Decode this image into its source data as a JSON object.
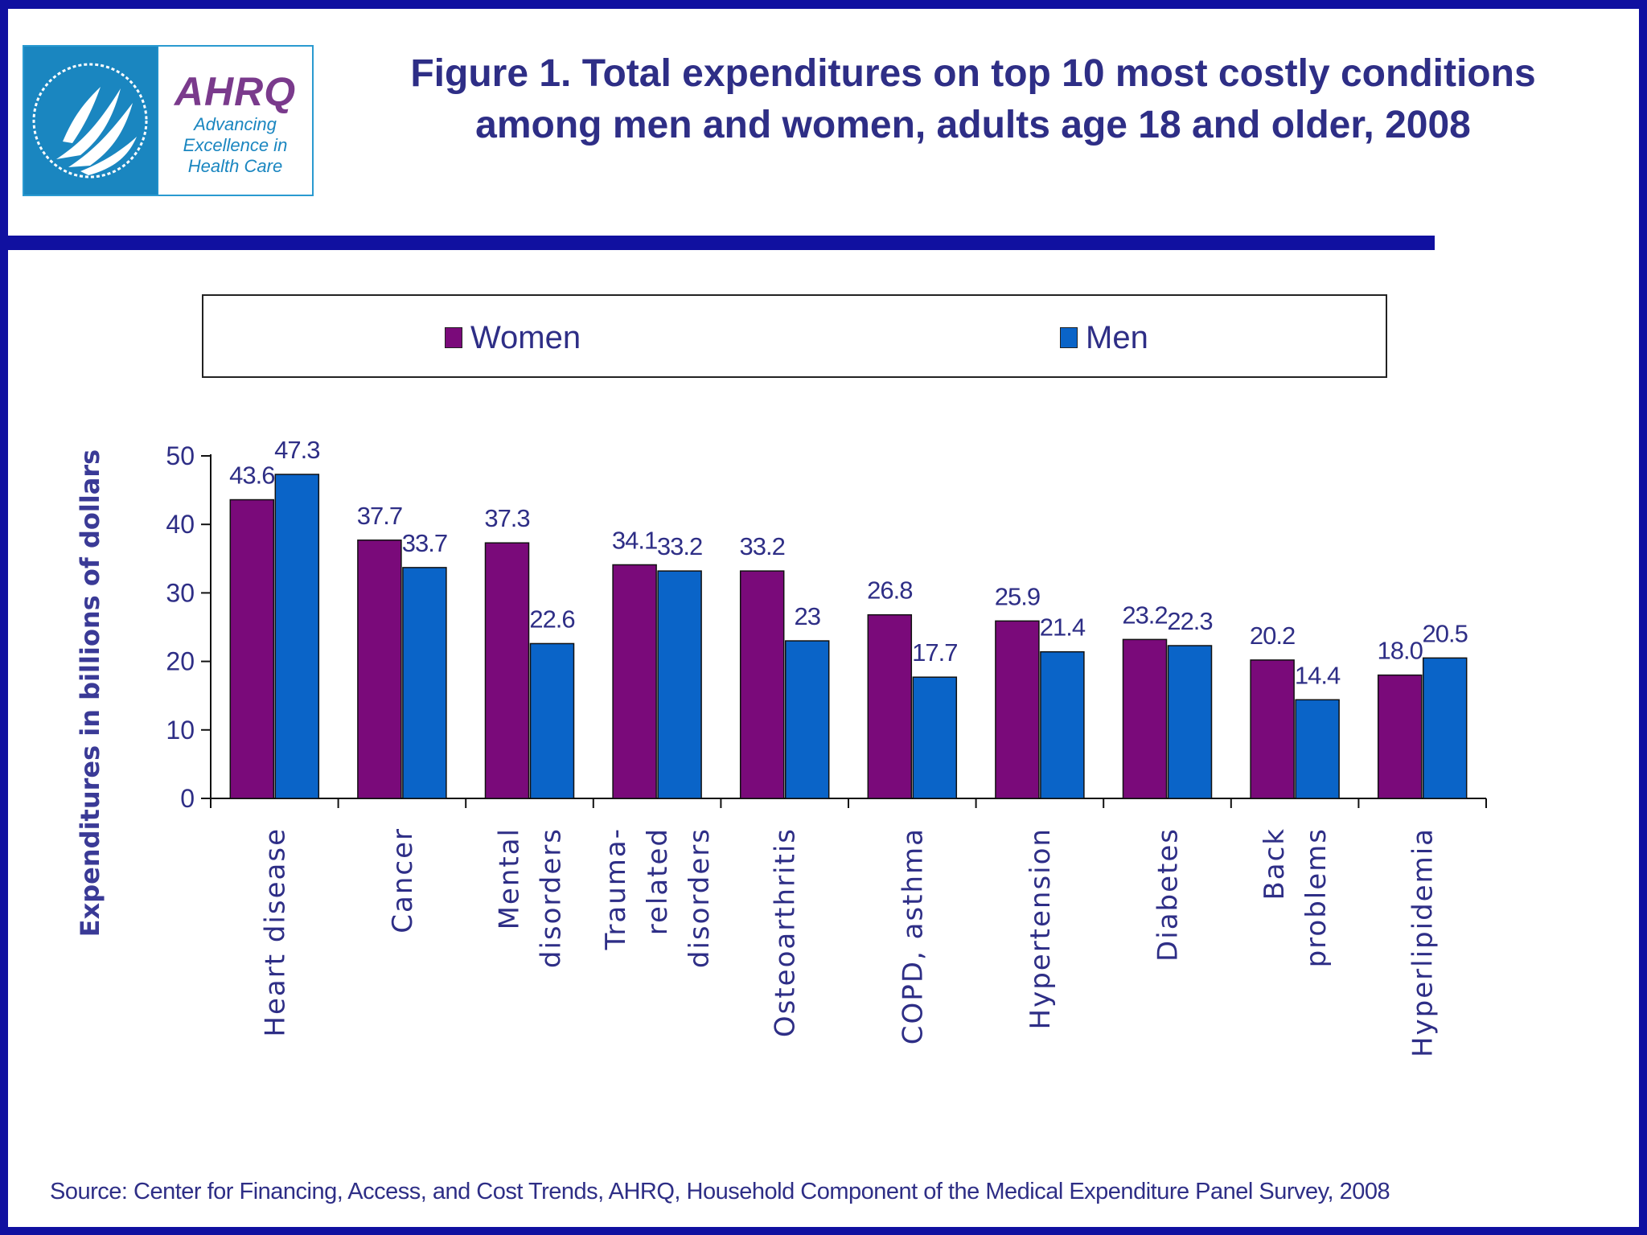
{
  "logo": {
    "hhs_seal": "hhs-eagle-seal",
    "ahrq_word": "AHRQ",
    "ahrq_tagline": [
      "Advancing",
      "Excellence in",
      "Health Care"
    ]
  },
  "title_lines": [
    "Figure 1. Total expenditures on top 10 most costly conditions",
    "among men and women, adults age 18 and older, 2008"
  ],
  "source": "Source: Center for Financing, Access, and Cost Trends, AHRQ, Household Component of the Medical Expenditure Panel Survey, 2008",
  "chart_data": {
    "type": "bar",
    "title": "Figure 1. Total expenditures on top 10 most costly conditions among men and women, adults age 18 and older, 2008",
    "ylabel": "Expenditures  in billions of dollars",
    "xlabel": "",
    "ylim": [
      0,
      50
    ],
    "yticks": [
      0,
      10,
      20,
      30,
      40,
      50
    ],
    "grid": false,
    "legend": "top",
    "categories": [
      [
        "Heart disease"
      ],
      [
        "Cancer"
      ],
      [
        "Mental",
        "disorders"
      ],
      [
        "Trauma-",
        "related",
        "disorders"
      ],
      [
        "Osteoarthritis"
      ],
      [
        "COPD, asthma"
      ],
      [
        "Hypertension"
      ],
      [
        "Diabetes"
      ],
      [
        "Back",
        "problems"
      ],
      [
        "Hyperlipidemia"
      ]
    ],
    "series": [
      {
        "name": "Women",
        "color": "#7a0a7a",
        "values": [
          43.6,
          37.7,
          37.3,
          34.1,
          33.2,
          26.8,
          25.9,
          23.2,
          20.2,
          18.0
        ],
        "labels": [
          "43.6",
          "37.7",
          "37.3",
          "34.1",
          "33.2",
          "26.8",
          "25.9",
          "23.2",
          "20.2",
          "18.0"
        ]
      },
      {
        "name": "Men",
        "color": "#0a64c8",
        "values": [
          47.3,
          33.7,
          22.6,
          33.2,
          23,
          17.7,
          21.4,
          22.3,
          14.4,
          20.5
        ],
        "labels": [
          "47.3",
          "33.7",
          "22.6",
          "33.2",
          "23",
          "17.7",
          "21.4",
          "22.3",
          "14.4",
          "20.5"
        ]
      }
    ]
  }
}
